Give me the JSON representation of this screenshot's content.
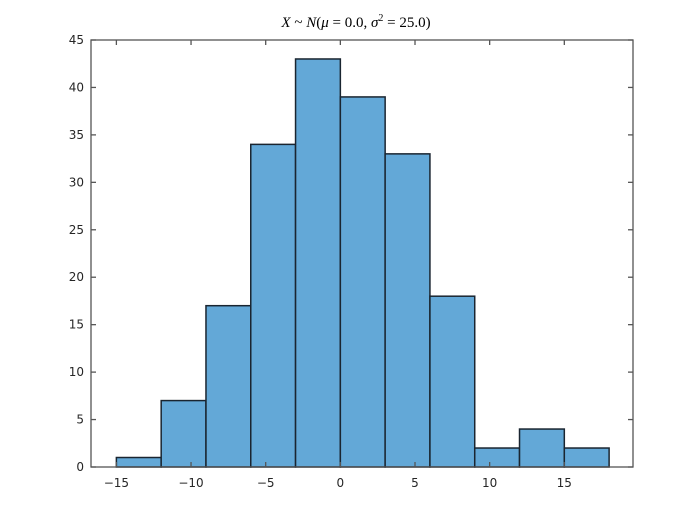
{
  "chart_data": {
    "type": "bar",
    "subtype": "histogram",
    "title": "X ~ N(μ = 0.0, σ² = 25.0)",
    "xlabel": "",
    "ylabel": "",
    "bin_edges": [
      -15,
      -12,
      -9,
      -6,
      -3,
      0,
      3,
      6,
      9,
      12,
      15,
      18
    ],
    "categories": [
      "[-15,-12)",
      "[-12,-9)",
      "[-9,-6)",
      "[-6,-3)",
      "[-3,0)",
      "[0,3)",
      "[3,6)",
      "[6,9)",
      "[9,12)",
      "[12,15)",
      "[15,18)"
    ],
    "values": [
      1,
      7,
      17,
      34,
      43,
      39,
      33,
      18,
      2,
      4,
      2
    ],
    "xlim": [
      -16.7,
      19.6
    ],
    "ylim": [
      0,
      45
    ],
    "xticks": [
      -15,
      -10,
      -5,
      0,
      5,
      10,
      15
    ],
    "xtick_labels": [
      "−15",
      "−10",
      "−5",
      "0",
      "5",
      "10",
      "15"
    ],
    "yticks": [
      0,
      5,
      10,
      15,
      20,
      25,
      30,
      35,
      40,
      45
    ],
    "ytick_labels": [
      "0",
      "5",
      "10",
      "15",
      "20",
      "25",
      "30",
      "35",
      "40",
      "45"
    ],
    "grid": false,
    "legend": null,
    "colors": {
      "bar_fill": "#63a8d7",
      "bar_edge": "#1a2530",
      "axis": "#555555"
    }
  }
}
